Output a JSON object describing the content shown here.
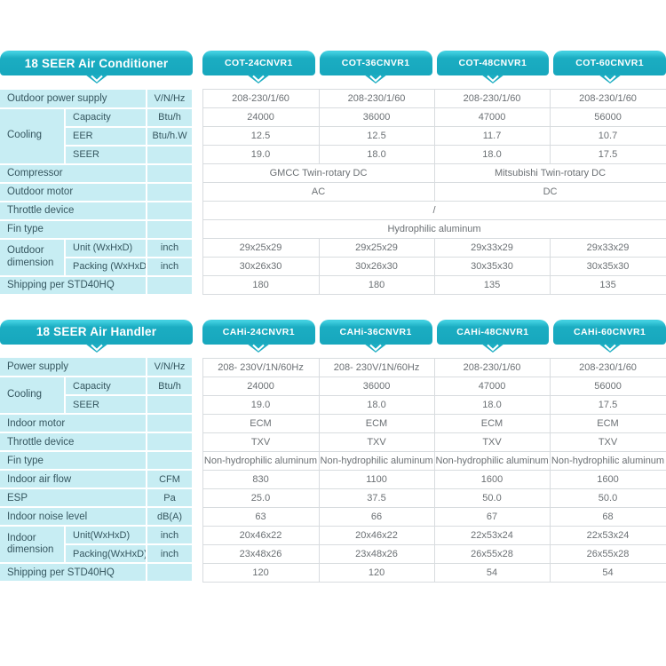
{
  "colors": {
    "tab_teal": "#1badc2",
    "tab_highlight": "#41cfe0",
    "panel_cyan": "#c7edf3",
    "label_text": "#35565f",
    "data_text": "#6b7074",
    "data_border": "#d8dcdf"
  },
  "icons": {
    "tab_pointer": "chevron-down-icon"
  },
  "tables": [
    {
      "title": "18 SEER Air Conditioner",
      "models": [
        "COT-24CNVR1",
        "COT-36CNVR1",
        "COT-48CNVR1",
        "COT-60CNVR1"
      ],
      "rows": [
        {
          "cells": [
            {
              "t": "Outdoor power supply",
              "type": "label",
              "cs": 2
            },
            {
              "t": "V/N/Hz",
              "type": "unit"
            },
            {
              "t": "208-230/1/60",
              "type": "data"
            },
            {
              "t": "208-230/1/60",
              "type": "data"
            },
            {
              "t": "208-230/1/60",
              "type": "data"
            },
            {
              "t": "208-230/1/60",
              "type": "data"
            }
          ]
        },
        {
          "cells": [
            {
              "t": "Cooling",
              "type": "group",
              "rs": 3
            },
            {
              "t": "Capacity",
              "type": "sublabel"
            },
            {
              "t": "Btu/h",
              "type": "unit"
            },
            {
              "t": "24000",
              "type": "data"
            },
            {
              "t": "36000",
              "type": "data"
            },
            {
              "t": "47000",
              "type": "data"
            },
            {
              "t": "56000",
              "type": "data"
            }
          ]
        },
        {
          "cells": [
            {
              "t": "EER",
              "type": "sublabel"
            },
            {
              "t": "Btu/h.W",
              "type": "unit"
            },
            {
              "t": "12.5",
              "type": "data"
            },
            {
              "t": "12.5",
              "type": "data"
            },
            {
              "t": "11.7",
              "type": "data"
            },
            {
              "t": "10.7",
              "type": "data"
            }
          ]
        },
        {
          "cells": [
            {
              "t": "SEER",
              "type": "sublabel"
            },
            {
              "t": "",
              "type": "unit"
            },
            {
              "t": "19.0",
              "type": "data"
            },
            {
              "t": "18.0",
              "type": "data"
            },
            {
              "t": "18.0",
              "type": "data"
            },
            {
              "t": "17.5",
              "type": "data"
            }
          ]
        },
        {
          "cells": [
            {
              "t": "Compressor",
              "type": "label",
              "cs": 2
            },
            {
              "t": "",
              "type": "unit"
            },
            {
              "t": "GMCC Twin-rotary DC",
              "type": "data",
              "cs": 2
            },
            {
              "t": "Mitsubishi Twin-rotary DC",
              "type": "data",
              "cs": 2
            }
          ]
        },
        {
          "cells": [
            {
              "t": "Outdoor motor",
              "type": "label",
              "cs": 2
            },
            {
              "t": "",
              "type": "unit"
            },
            {
              "t": "AC",
              "type": "data",
              "cs": 2
            },
            {
              "t": "DC",
              "type": "data",
              "cs": 2
            }
          ]
        },
        {
          "cells": [
            {
              "t": "Throttle device",
              "type": "label",
              "cs": 2
            },
            {
              "t": "",
              "type": "unit"
            },
            {
              "t": "/",
              "type": "data",
              "cs": 4
            }
          ]
        },
        {
          "cells": [
            {
              "t": "Fin type",
              "type": "label",
              "cs": 2
            },
            {
              "t": "",
              "type": "unit"
            },
            {
              "t": "Hydrophilic aluminum",
              "type": "data",
              "cs": 4
            }
          ]
        },
        {
          "cells": [
            {
              "t": "Outdoor dimension",
              "type": "group",
              "rs": 2
            },
            {
              "t": "Unit (WxHxD)",
              "type": "sublabel"
            },
            {
              "t": "inch",
              "type": "unit"
            },
            {
              "t": "29x25x29",
              "type": "data"
            },
            {
              "t": "29x25x29",
              "type": "data"
            },
            {
              "t": "29x33x29",
              "type": "data"
            },
            {
              "t": "29x33x29",
              "type": "data"
            }
          ]
        },
        {
          "cells": [
            {
              "t": "Packing (WxHxD)",
              "type": "sublabel"
            },
            {
              "t": "inch",
              "type": "unit"
            },
            {
              "t": "30x26x30",
              "type": "data"
            },
            {
              "t": "30x26x30",
              "type": "data"
            },
            {
              "t": "30x35x30",
              "type": "data"
            },
            {
              "t": "30x35x30",
              "type": "data"
            }
          ]
        },
        {
          "cells": [
            {
              "t": "Shipping per STD40HQ",
              "type": "label",
              "cs": 2
            },
            {
              "t": "",
              "type": "unit"
            },
            {
              "t": "180",
              "type": "data"
            },
            {
              "t": "180",
              "type": "data"
            },
            {
              "t": "135",
              "type": "data"
            },
            {
              "t": "135",
              "type": "data"
            }
          ]
        }
      ]
    },
    {
      "title": "18 SEER Air Handler",
      "models": [
        "CAHi-24CNVR1",
        "CAHi-36CNVR1",
        "CAHi-48CNVR1",
        "CAHi-60CNVR1"
      ],
      "rows": [
        {
          "cells": [
            {
              "t": "Power supply",
              "type": "label",
              "cs": 2
            },
            {
              "t": "V/N/Hz",
              "type": "unit"
            },
            {
              "t": "208- 230V/1N/60Hz",
              "type": "data"
            },
            {
              "t": "208- 230V/1N/60Hz",
              "type": "data"
            },
            {
              "t": "208-230/1/60",
              "type": "data"
            },
            {
              "t": "208-230/1/60",
              "type": "data"
            }
          ]
        },
        {
          "cells": [
            {
              "t": "Cooling",
              "type": "group",
              "rs": 2
            },
            {
              "t": "Capacity",
              "type": "sublabel"
            },
            {
              "t": "Btu/h",
              "type": "unit"
            },
            {
              "t": "24000",
              "type": "data"
            },
            {
              "t": "36000",
              "type": "data"
            },
            {
              "t": "47000",
              "type": "data"
            },
            {
              "t": "56000",
              "type": "data"
            }
          ]
        },
        {
          "cells": [
            {
              "t": "SEER",
              "type": "sublabel"
            },
            {
              "t": "",
              "type": "unit"
            },
            {
              "t": "19.0",
              "type": "data"
            },
            {
              "t": "18.0",
              "type": "data"
            },
            {
              "t": "18.0",
              "type": "data"
            },
            {
              "t": "17.5",
              "type": "data"
            }
          ]
        },
        {
          "cells": [
            {
              "t": "Indoor motor",
              "type": "label",
              "cs": 2
            },
            {
              "t": "",
              "type": "unit"
            },
            {
              "t": "ECM",
              "type": "data"
            },
            {
              "t": "ECM",
              "type": "data"
            },
            {
              "t": "ECM",
              "type": "data"
            },
            {
              "t": "ECM",
              "type": "data"
            }
          ]
        },
        {
          "cells": [
            {
              "t": "Throttle device",
              "type": "label",
              "cs": 2
            },
            {
              "t": "",
              "type": "unit"
            },
            {
              "t": "TXV",
              "type": "data"
            },
            {
              "t": "TXV",
              "type": "data"
            },
            {
              "t": "TXV",
              "type": "data"
            },
            {
              "t": "TXV",
              "type": "data"
            }
          ]
        },
        {
          "cells": [
            {
              "t": "Fin type",
              "type": "label",
              "cs": 2
            },
            {
              "t": "",
              "type": "unit"
            },
            {
              "t": "Non-hydrophilic aluminum",
              "type": "data"
            },
            {
              "t": "Non-hydrophilic aluminum",
              "type": "data"
            },
            {
              "t": "Non-hydrophilic aluminum",
              "type": "data"
            },
            {
              "t": "Non-hydrophilic aluminum",
              "type": "data"
            }
          ]
        },
        {
          "cells": [
            {
              "t": "Indoor air flow",
              "type": "label",
              "cs": 2
            },
            {
              "t": "CFM",
              "type": "unit"
            },
            {
              "t": "830",
              "type": "data"
            },
            {
              "t": "1100",
              "type": "data"
            },
            {
              "t": "1600",
              "type": "data"
            },
            {
              "t": "1600",
              "type": "data"
            }
          ]
        },
        {
          "cells": [
            {
              "t": "ESP",
              "type": "label",
              "cs": 2
            },
            {
              "t": "Pa",
              "type": "unit"
            },
            {
              "t": "25.0",
              "type": "data"
            },
            {
              "t": "37.5",
              "type": "data"
            },
            {
              "t": "50.0",
              "type": "data"
            },
            {
              "t": "50.0",
              "type": "data"
            }
          ]
        },
        {
          "cells": [
            {
              "t": "Indoor noise level",
              "type": "label",
              "cs": 2
            },
            {
              "t": "dB(A)",
              "type": "unit"
            },
            {
              "t": "63",
              "type": "data"
            },
            {
              "t": "66",
              "type": "data"
            },
            {
              "t": "67",
              "type": "data"
            },
            {
              "t": "68",
              "type": "data"
            }
          ]
        },
        {
          "cells": [
            {
              "t": "Indoor dimension",
              "type": "group",
              "rs": 2
            },
            {
              "t": "Unit(WxHxD)",
              "type": "sublabel"
            },
            {
              "t": "inch",
              "type": "unit"
            },
            {
              "t": "20x46x22",
              "type": "data"
            },
            {
              "t": "20x46x22",
              "type": "data"
            },
            {
              "t": "22x53x24",
              "type": "data"
            },
            {
              "t": "22x53x24",
              "type": "data"
            }
          ]
        },
        {
          "cells": [
            {
              "t": "Packing(WxHxD)",
              "type": "sublabel"
            },
            {
              "t": "inch",
              "type": "unit"
            },
            {
              "t": "23x48x26",
              "type": "data"
            },
            {
              "t": "23x48x26",
              "type": "data"
            },
            {
              "t": "26x55x28",
              "type": "data"
            },
            {
              "t": "26x55x28",
              "type": "data"
            }
          ]
        },
        {
          "cells": [
            {
              "t": "Shipping per STD40HQ",
              "type": "label",
              "cs": 2
            },
            {
              "t": "",
              "type": "unit"
            },
            {
              "t": "120",
              "type": "data"
            },
            {
              "t": "120",
              "type": "data"
            },
            {
              "t": "54",
              "type": "data"
            },
            {
              "t": "54",
              "type": "data"
            }
          ]
        }
      ]
    }
  ]
}
